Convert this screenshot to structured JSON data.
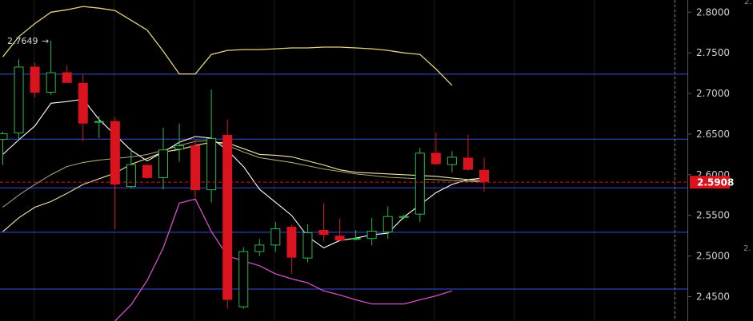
{
  "chart_data": {
    "type": "candlestick",
    "ylim": [
      2.42,
      2.815
    ],
    "y_ticks": [
      "2.8000",
      "2.7500",
      "2.7000",
      "2.6500",
      "2.6000",
      "2.5500",
      "2.5000",
      "2.4500"
    ],
    "current_price": "2.5908",
    "high_marker": "2.7649",
    "edge_labels": [
      "2.",
      "2."
    ],
    "colors": {
      "background": "#000000",
      "grid": "#1c1c1c",
      "bull": "#2db84d",
      "bear": "#d9141e",
      "bb_upper": "#e6d47a",
      "bb_lower": "#d64fc8",
      "ma_fast": "#ffffff",
      "ma_slow": "#f2e7a6",
      "hline": "#3a4de0",
      "price_tag": "#d9141e"
    },
    "horizontal_lines": [
      2.7237,
      2.6438,
      2.5838,
      2.5292,
      2.4593
    ],
    "candles": [
      {
        "o": 2.643,
        "h": 2.653,
        "l": 2.612,
        "c": 2.651
      },
      {
        "o": 2.651,
        "h": 2.742,
        "l": 2.643,
        "c": 2.733
      },
      {
        "o": 2.733,
        "h": 2.738,
        "l": 2.695,
        "c": 2.701
      },
      {
        "o": 2.701,
        "h": 2.765,
        "l": 2.698,
        "c": 2.726
      },
      {
        "o": 2.726,
        "h": 2.735,
        "l": 2.715,
        "c": 2.713
      },
      {
        "o": 2.713,
        "h": 2.723,
        "l": 2.641,
        "c": 2.663
      },
      {
        "o": 2.664,
        "h": 2.672,
        "l": 2.645,
        "c": 2.666
      },
      {
        "o": 2.666,
        "h": 2.671,
        "l": 2.533,
        "c": 2.588
      },
      {
        "o": 2.585,
        "h": 2.632,
        "l": 2.583,
        "c": 2.613
      },
      {
        "o": 2.612,
        "h": 2.614,
        "l": 2.595,
        "c": 2.596
      },
      {
        "o": 2.596,
        "h": 2.658,
        "l": 2.582,
        "c": 2.631
      },
      {
        "o": 2.631,
        "h": 2.663,
        "l": 2.616,
        "c": 2.636
      },
      {
        "o": 2.636,
        "h": 2.643,
        "l": 2.572,
        "c": 2.581
      },
      {
        "o": 2.581,
        "h": 2.705,
        "l": 2.566,
        "c": 2.645
      },
      {
        "o": 2.649,
        "h": 2.668,
        "l": 2.435,
        "c": 2.446
      },
      {
        "o": 2.437,
        "h": 2.511,
        "l": 2.435,
        "c": 2.506
      },
      {
        "o": 2.505,
        "h": 2.521,
        "l": 2.5,
        "c": 2.514
      },
      {
        "o": 2.513,
        "h": 2.542,
        "l": 2.505,
        "c": 2.534
      },
      {
        "o": 2.536,
        "h": 2.539,
        "l": 2.478,
        "c": 2.498
      },
      {
        "o": 2.497,
        "h": 2.539,
        "l": 2.492,
        "c": 2.529
      },
      {
        "o": 2.532,
        "h": 2.565,
        "l": 2.518,
        "c": 2.526
      },
      {
        "o": 2.525,
        "h": 2.546,
        "l": 2.519,
        "c": 2.519
      },
      {
        "o": 2.521,
        "h": 2.532,
        "l": 2.519,
        "c": 2.522
      },
      {
        "o": 2.521,
        "h": 2.547,
        "l": 2.513,
        "c": 2.531
      },
      {
        "o": 2.529,
        "h": 2.561,
        "l": 2.521,
        "c": 2.549
      },
      {
        "o": 2.547,
        "h": 2.551,
        "l": 2.545,
        "c": 2.549
      },
      {
        "o": 2.551,
        "h": 2.633,
        "l": 2.542,
        "c": 2.627
      },
      {
        "o": 2.627,
        "h": 2.652,
        "l": 2.612,
        "c": 2.613
      },
      {
        "o": 2.612,
        "h": 2.629,
        "l": 2.603,
        "c": 2.622
      },
      {
        "o": 2.621,
        "h": 2.649,
        "l": 2.605,
        "c": 2.606
      },
      {
        "o": 2.606,
        "h": 2.621,
        "l": 2.579,
        "c": 2.591
      }
    ],
    "indicators": [
      {
        "key": "bb_upper",
        "start": 0,
        "values": [
          2.745,
          2.77,
          2.786,
          2.8,
          2.803,
          2.807,
          2.805,
          2.802,
          2.79,
          2.778,
          2.752,
          2.724,
          2.724,
          2.748,
          2.753,
          2.754,
          2.754,
          2.755,
          2.756,
          2.756,
          2.757,
          2.757,
          2.756,
          2.755,
          2.753,
          2.75,
          2.748,
          2.73,
          2.71
        ]
      },
      {
        "key": "bb_lower",
        "start": 7,
        "values": [
          2.42,
          2.44,
          2.47,
          2.51,
          2.565,
          2.57,
          2.53,
          2.5,
          2.494,
          2.488,
          2.478,
          2.472,
          2.467,
          2.457,
          2.452,
          2.446,
          2.441,
          2.441,
          2.441,
          2.446,
          2.451,
          2.457
        ]
      },
      {
        "key": "ma_fast",
        "start": 0,
        "values": [
          2.625,
          2.643,
          2.66,
          2.688,
          2.69,
          2.693,
          2.668,
          2.649,
          2.63,
          2.617,
          2.628,
          2.64,
          2.647,
          2.645,
          2.63,
          2.61,
          2.582,
          2.566,
          2.55,
          2.524,
          2.51,
          2.519,
          2.522,
          2.526,
          2.528,
          2.548,
          2.563,
          2.578,
          2.588,
          2.594,
          2.596
        ]
      },
      {
        "key": "ma_slow",
        "start": 0,
        "values": [
          2.53,
          2.547,
          2.56,
          2.567,
          2.577,
          2.588,
          2.595,
          2.602,
          2.613,
          2.62,
          2.628,
          2.631,
          2.636,
          2.64,
          2.639,
          2.632,
          2.625,
          2.624,
          2.622,
          2.617,
          2.612,
          2.606,
          2.603,
          2.602,
          2.601,
          2.6,
          2.599,
          2.598,
          2.596,
          2.594,
          2.592
        ]
      },
      {
        "key": "ma_mid",
        "start": 0,
        "values": [
          2.56,
          2.575,
          2.588,
          2.6,
          2.61,
          2.615,
          2.618,
          2.62,
          2.622,
          2.625,
          2.63,
          2.636,
          2.641,
          2.642,
          2.636,
          2.628,
          2.621,
          2.618,
          2.615,
          2.611,
          2.607,
          2.604,
          2.601,
          2.599,
          2.597,
          2.596,
          2.595,
          2.594,
          2.593,
          2.592,
          2.591
        ]
      }
    ]
  }
}
